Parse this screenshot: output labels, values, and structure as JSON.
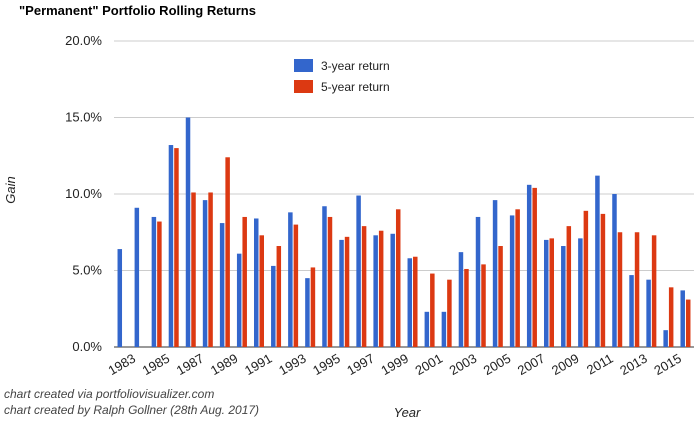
{
  "chart_data": {
    "type": "bar",
    "title": "\"Permanent\" Portfolio Rolling Returns",
    "xlabel": "Year",
    "ylabel": "Gain",
    "ylim": [
      0,
      20
    ],
    "y_ticks": [
      "0.0%",
      "5.0%",
      "10.0%",
      "15.0%",
      "20.0%"
    ],
    "y_tick_values": [
      0,
      5,
      10,
      15,
      20
    ],
    "grid": true,
    "legend_position": "top-center",
    "categories": [
      "1983",
      "1984",
      "1985",
      "1986",
      "1987",
      "1988",
      "1989",
      "1990",
      "1991",
      "1992",
      "1993",
      "1994",
      "1995",
      "1996",
      "1997",
      "1998",
      "1999",
      "2000",
      "2001",
      "2002",
      "2003",
      "2004",
      "2005",
      "2006",
      "2007",
      "2008",
      "2009",
      "2010",
      "2011",
      "2012",
      "2013",
      "2014",
      "2015",
      "2016"
    ],
    "x_tick_labels": [
      "1983",
      "",
      "1985",
      "",
      "1987",
      "",
      "1989",
      "",
      "1991",
      "",
      "1993",
      "",
      "1995",
      "",
      "1997",
      "",
      "1999",
      "",
      "2001",
      "",
      "2003",
      "",
      "2005",
      "",
      "2007",
      "",
      "2009",
      "",
      "2011",
      "",
      "2013",
      "",
      "2015",
      ""
    ],
    "series": [
      {
        "name": "3-year return",
        "color": "#3366cc",
        "values": [
          6.4,
          9.1,
          8.5,
          13.2,
          15.0,
          9.6,
          8.1,
          6.1,
          8.4,
          5.3,
          8.8,
          4.5,
          9.2,
          7.0,
          9.9,
          7.3,
          7.4,
          5.8,
          2.3,
          2.3,
          6.2,
          8.5,
          9.6,
          8.6,
          10.6,
          7.0,
          6.6,
          7.1,
          11.2,
          10.0,
          4.7,
          4.4,
          1.1,
          3.7
        ]
      },
      {
        "name": "5-year return",
        "color": "#dc3912",
        "values": [
          null,
          null,
          8.2,
          13.0,
          10.1,
          10.1,
          12.4,
          8.5,
          7.3,
          6.6,
          8.0,
          5.2,
          8.5,
          7.2,
          7.9,
          7.6,
          9.0,
          5.9,
          4.8,
          4.4,
          5.1,
          5.4,
          6.6,
          9.0,
          10.4,
          7.1,
          7.9,
          8.9,
          8.7,
          7.5,
          7.5,
          7.3,
          3.9,
          3.1
        ]
      }
    ]
  },
  "credits": [
    "chart created via portfoliovisualizer.com",
    "chart created by Ralph Gollner (28th Aug. 2017)"
  ]
}
